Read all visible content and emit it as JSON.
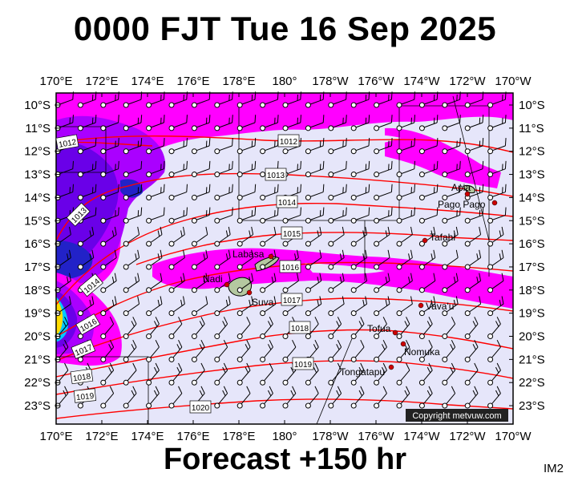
{
  "title": "0000 FJT Tue 16 Sep 2025",
  "footer": "Forecast +150 hr",
  "corner_label": "IM2",
  "copyright": "Copyright metvuw.com",
  "map": {
    "lon_ticks": [
      "170°E",
      "172°E",
      "174°E",
      "176°E",
      "178°E",
      "180°",
      "178°W",
      "176°W",
      "174°W",
      "172°W",
      "170°W"
    ],
    "lat_ticks": [
      "10°S",
      "11°S",
      "12°S",
      "13°S",
      "14°S",
      "15°S",
      "16°S",
      "17°S",
      "18°S",
      "19°S",
      "20°S",
      "21°S",
      "22°S",
      "23°S"
    ],
    "colors": {
      "ocean": "#e6e6fa",
      "precip_light": "#ff00ff",
      "precip_medium": "#aa00ff",
      "precip_heavy": "#6a00e8",
      "precip_heavier": "#2222c8",
      "isobar": "#ff0000",
      "land": "#b4c8a0",
      "place_dot": "#cc0000"
    },
    "isobars": [
      {
        "label": "1012"
      },
      {
        "label": "1012"
      },
      {
        "label": "1013"
      },
      {
        "label": "1013"
      },
      {
        "label": "1014"
      },
      {
        "label": "1014"
      },
      {
        "label": "1015"
      },
      {
        "label": "1016"
      },
      {
        "label": "1016"
      },
      {
        "label": "1017"
      },
      {
        "label": "1017"
      },
      {
        "label": "1018"
      },
      {
        "label": "1018"
      },
      {
        "label": "1019"
      },
      {
        "label": "1019"
      },
      {
        "label": "1020"
      }
    ],
    "places": [
      {
        "name": "Apia"
      },
      {
        "name": "Pago Pago"
      },
      {
        "name": "Tafahi"
      },
      {
        "name": "Labasa"
      },
      {
        "name": "Nadi"
      },
      {
        "name": "Suva"
      },
      {
        "name": "Vava'u"
      },
      {
        "name": "Tofua"
      },
      {
        "name": "Nomuka"
      },
      {
        "name": "Tongatapu"
      }
    ]
  }
}
